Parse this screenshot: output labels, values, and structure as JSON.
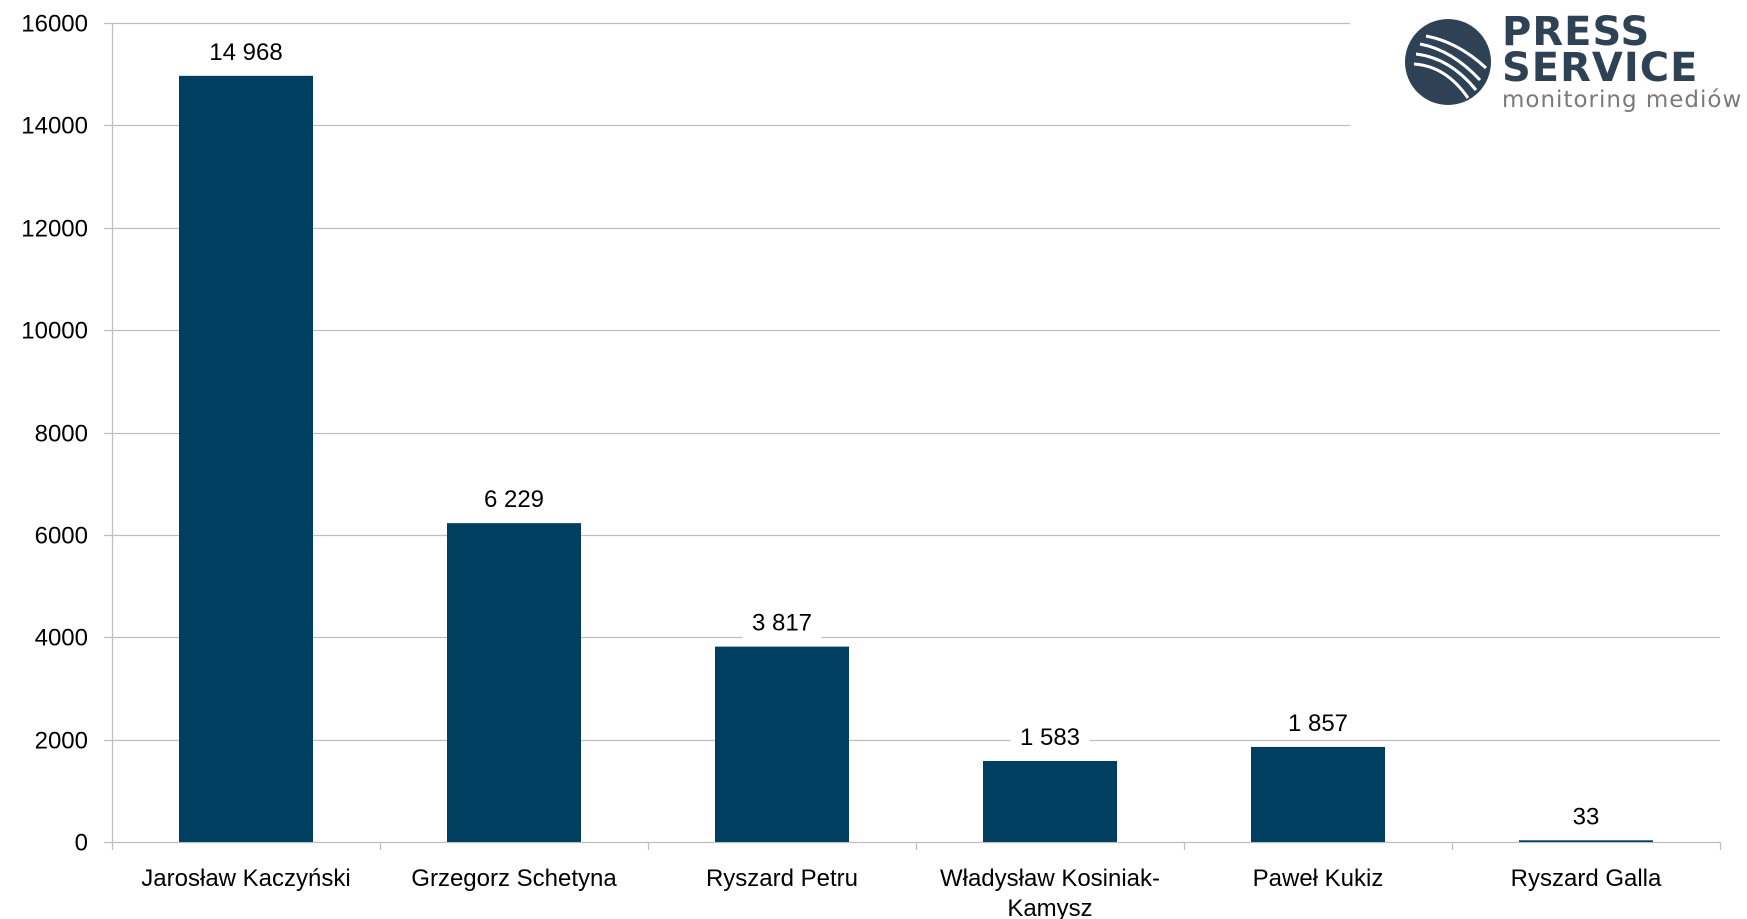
{
  "chart_data": {
    "type": "bar",
    "categories": [
      "Jarosław Kaczyński",
      "Grzegorz Schetyna",
      "Ryszard Petru",
      "Władysław Kosiniak-Kamysz",
      "Paweł Kukiz",
      "Ryszard Galla"
    ],
    "category_lines": [
      [
        "Jarosław Kaczyński"
      ],
      [
        "Grzegorz Schetyna"
      ],
      [
        "Ryszard Petru"
      ],
      [
        "Władysław Kosiniak-",
        "Kamysz"
      ],
      [
        "Paweł Kukiz"
      ],
      [
        "Ryszard Galla"
      ]
    ],
    "values": [
      14968,
      6229,
      3817,
      1583,
      1857,
      33
    ],
    "data_labels": [
      "14 968",
      "6 229",
      "3 817",
      "1 583",
      "1 857",
      "33"
    ],
    "title": "",
    "xlabel": "",
    "ylabel": "",
    "ylim": [
      0,
      16000
    ],
    "yticks": [
      0,
      2000,
      4000,
      6000,
      8000,
      10000,
      12000,
      14000,
      16000
    ],
    "ytick_labels": [
      "0",
      "2000",
      "4000",
      "6000",
      "8000",
      "10000",
      "12000",
      "14000",
      "16000"
    ],
    "grid": true,
    "legend": "none",
    "bar_color": "#003f60",
    "grid_color": "#bfbfbf"
  },
  "logo": {
    "line1": "PRESS",
    "line2": "SERVICE",
    "tagline": "monitoring mediów",
    "color": "#2f4155"
  }
}
